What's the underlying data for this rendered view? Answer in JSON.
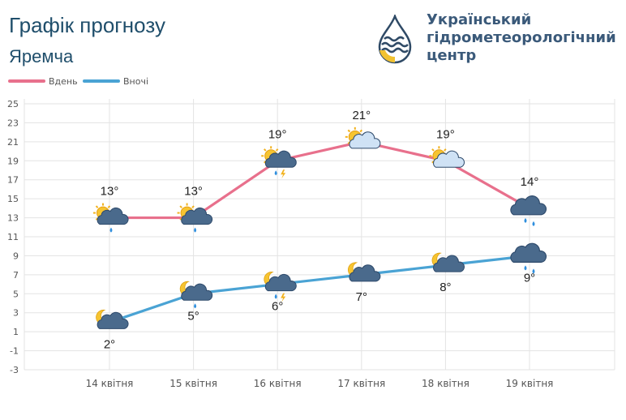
{
  "header": {
    "title": "Графік прогнозу",
    "subtitle": "Яремча"
  },
  "org": {
    "line1": "Український",
    "line2": "гідрометеорологічний",
    "line3": "центр"
  },
  "legend": [
    {
      "label": "Вдень",
      "color": "#e8708c"
    },
    {
      "label": "Вночі",
      "color": "#4aa3d4"
    }
  ],
  "chart_data": {
    "type": "line",
    "categories": [
      "14 квітня",
      "15 квітня",
      "16 квітня",
      "17 квітня",
      "18 квітня",
      "19 квітня"
    ],
    "series": [
      {
        "name": "Вдень",
        "color": "#e8708c",
        "values": [
          13,
          13,
          19,
          21,
          19,
          14
        ],
        "labels": [
          "13°",
          "13°",
          "19°",
          "21°",
          "19°",
          "14°"
        ],
        "icons": [
          "sun-cloud-rain",
          "sun-cloud-rain",
          "sun-cloud-thunderstorm",
          "sun-cloud",
          "sun-cloud",
          "cloud-rain"
        ]
      },
      {
        "name": "Вночі",
        "color": "#4aa3d4",
        "values": [
          2,
          5,
          6,
          7,
          8,
          9
        ],
        "labels": [
          "2°",
          "5°",
          "6°",
          "7°",
          "8°",
          "9°"
        ],
        "icons": [
          "moon-cloud",
          "moon-cloud-rain",
          "moon-cloud-thunderstorm",
          "moon-cloud",
          "moon-cloud",
          "cloud-rain"
        ]
      }
    ],
    "yticks": [
      25,
      23,
      21,
      19,
      17,
      15,
      13,
      11,
      9,
      7,
      5,
      3,
      1,
      -1,
      -3
    ],
    "ylim": [
      -3,
      25
    ],
    "grid": true,
    "legend_position": "top-left"
  }
}
